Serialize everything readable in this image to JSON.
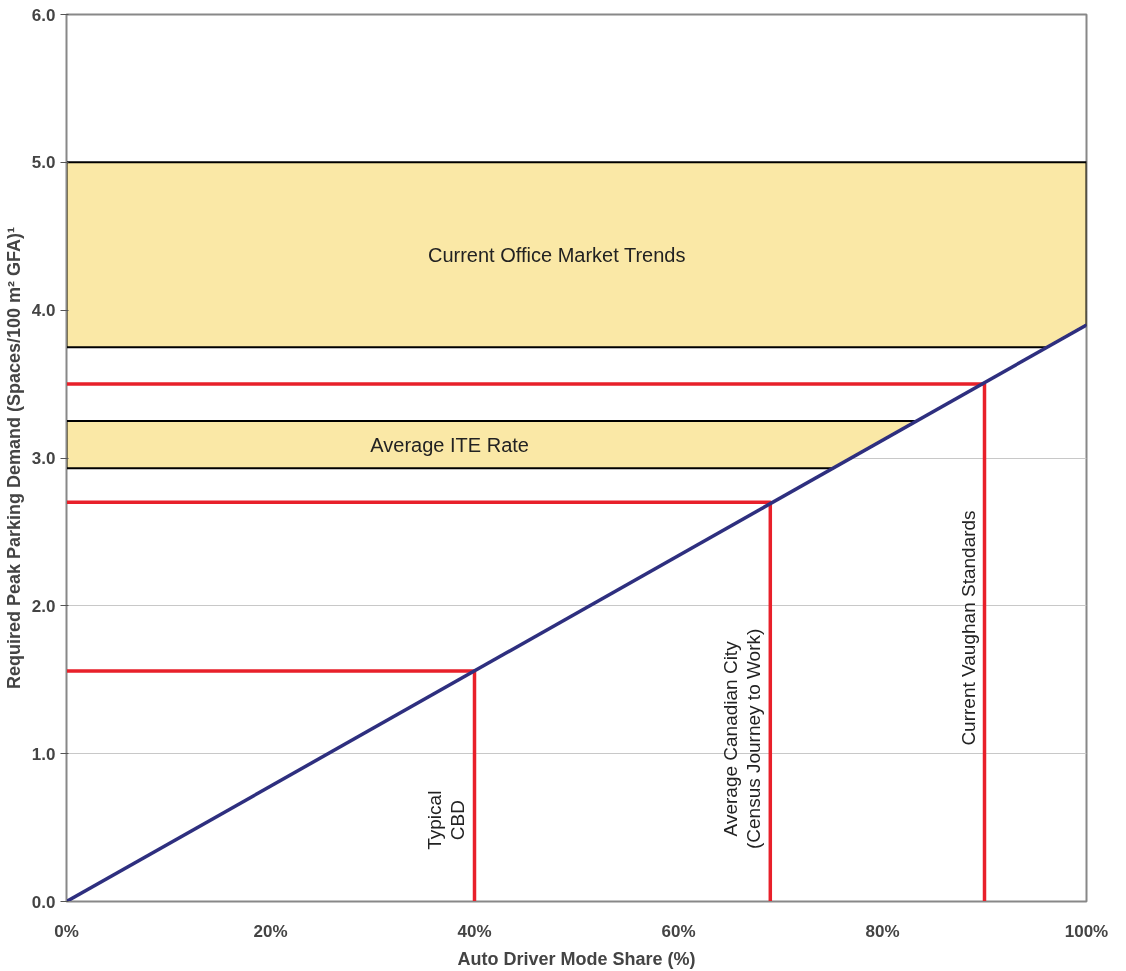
{
  "chart_data": {
    "type": "line",
    "xlabel": "Auto Driver Mode Share (%)",
    "ylabel": "Required Peak Parking Demand (Spaces/100 m² GFA)¹",
    "series": [
      {
        "x": [
          0,
          100
        ],
        "values": [
          0,
          3.9
        ],
        "color": "#2e2f7f"
      },
      {
        "x": [
          0,
          40,
          40
        ],
        "values": [
          1.56,
          1.56,
          0
        ],
        "color": "#e8202a"
      },
      {
        "x": [
          0,
          69,
          69
        ],
        "values": [
          2.7,
          2.7,
          0
        ],
        "color": "#e8202a"
      },
      {
        "x": [
          0,
          90,
          90
        ],
        "values": [
          3.5,
          3.5,
          0
        ],
        "color": "#e8202a"
      }
    ],
    "bands": [
      {
        "axis": "y",
        "from": 3.75,
        "to": 5.0,
        "label": "Current Office Market Trends",
        "color": "#fae8a6"
      },
      {
        "axis": "y",
        "from": 2.93,
        "to": 3.25,
        "label": "Average ITE Rate",
        "color": "#fae8a6"
      }
    ],
    "annotations": [
      {
        "text": "Typical\nCBD",
        "x": 40,
        "y": 0.55
      },
      {
        "text": "Average Canadian City\n(Census Journey to Work)",
        "x": 69,
        "y": 1.1
      },
      {
        "text": "Current Vaughan Standards",
        "x": 90,
        "y": 1.85
      }
    ],
    "xlim": [
      0,
      100
    ],
    "xticks": [
      {
        "value": 0,
        "label": "0%"
      },
      {
        "value": 20,
        "label": "20%"
      },
      {
        "value": 40,
        "label": "40%"
      },
      {
        "value": 60,
        "label": "60%"
      },
      {
        "value": 80,
        "label": "80%"
      },
      {
        "value": 100,
        "label": "100%"
      }
    ],
    "ylim": [
      0,
      6
    ],
    "yticks": [
      {
        "value": 0,
        "label": "0.0"
      },
      {
        "value": 1,
        "label": "1.0"
      },
      {
        "value": 2,
        "label": "2.0"
      },
      {
        "value": 3,
        "label": "3.0"
      },
      {
        "value": 4,
        "label": "4.0"
      },
      {
        "value": 5,
        "label": "5.0"
      },
      {
        "value": 6,
        "label": "6.0"
      }
    ],
    "grid": "y",
    "marker": "none",
    "line_style": "solid"
  }
}
